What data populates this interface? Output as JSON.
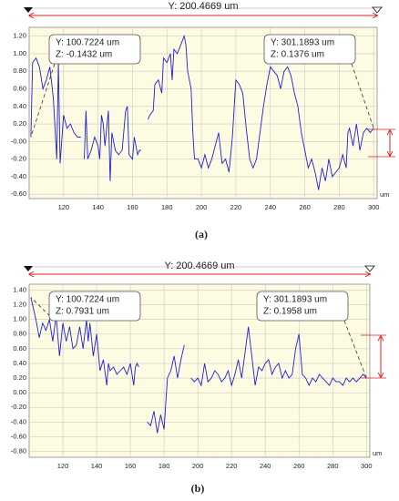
{
  "chart_data": [
    {
      "type": "line",
      "title": "Y: 200.4669 um",
      "x_label": "um",
      "caption": "(a)",
      "color": "#1f1fd8",
      "grid": true,
      "xlim": [
        100,
        302
      ],
      "ylim": [
        -0.65,
        1.3
      ],
      "xticks": [
        120,
        140,
        160,
        180,
        200,
        220,
        240,
        260,
        280,
        300
      ],
      "yticks": [
        {
          "value": 1.2,
          "label": "1.20"
        },
        {
          "value": 1.0,
          "label": "1.00"
        },
        {
          "value": 0.8,
          "label": "0.80"
        },
        {
          "value": 0.6,
          "label": "0.60"
        },
        {
          "value": 0.4,
          "label": "0.40"
        },
        {
          "value": 0.2,
          "label": "0.20"
        },
        {
          "value": 0,
          "label": "-0.00"
        },
        {
          "value": -0.2,
          "label": "-0.20"
        },
        {
          "value": -0.4,
          "label": "-0.40"
        },
        {
          "value": -0.6,
          "label": "-0.60"
        }
      ],
      "annotations": [
        [
          "Y: 100.7224 um",
          "Z: -0.1432 um"
        ],
        [
          "Y: 301.1893 um",
          "Z: 0.1376 um"
        ]
      ],
      "x": [
        101,
        102,
        104,
        106,
        108,
        110,
        112,
        114,
        116,
        117,
        118,
        120,
        122,
        124,
        126,
        128,
        130,
        131,
        132,
        133,
        134,
        136,
        138,
        140,
        141,
        142,
        143,
        144,
        145,
        146,
        147,
        148,
        150,
        152,
        154,
        156,
        157,
        158,
        160,
        161,
        162,
        163,
        164,
        165,
        166,
        169,
        170,
        172,
        173,
        175,
        177,
        178,
        180,
        182,
        183,
        184,
        186,
        188,
        190,
        191,
        192,
        194,
        195,
        196,
        198,
        200,
        202,
        204,
        206,
        208,
        210,
        212,
        214,
        216,
        218,
        220,
        222,
        224,
        226,
        228,
        230,
        232,
        234,
        236,
        238,
        240,
        242,
        244,
        246,
        248,
        250,
        252,
        254,
        256,
        258,
        260,
        262,
        264,
        266,
        268,
        270,
        272,
        274,
        276,
        278,
        280,
        282,
        284,
        285,
        286,
        288,
        290,
        292,
        294,
        296,
        298,
        300
      ],
      "values": [
        0.05,
        0.9,
        0.95,
        0.85,
        0.6,
        0.7,
        0.85,
        0.5,
        -0.2,
        0.9,
        -0.25,
        0.3,
        0.15,
        0.2,
        0.1,
        0.05,
        0.05,
        null,
        -0.2,
        0.35,
        -0.2,
        -0.1,
        0.05,
        -0.05,
        -0.2,
        0.3,
        0.2,
        -0.05,
        0.15,
        0.35,
        -0.45,
        0.1,
        -0.1,
        -0.15,
        -0.1,
        0.35,
        0.4,
        -0.15,
        -0.2,
        0.05,
        -0.05,
        -0.15,
        -0.1,
        -0.1,
        null,
        0.25,
        0.3,
        0.35,
        0.65,
        0.7,
        0.55,
        0.95,
        0.9,
        1.0,
        0.7,
        1.05,
        1.0,
        1.1,
        1.2,
        1.1,
        0.8,
        0.6,
        0.1,
        -0.2,
        -0.2,
        -0.3,
        -0.15,
        -0.3,
        -0.2,
        -0.05,
        0.1,
        -0.25,
        -0.2,
        -0.35,
        0.05,
        0.7,
        0.65,
        0.55,
        0.15,
        -0.2,
        -0.3,
        -0.2,
        0.1,
        0.4,
        0.65,
        0.85,
        0.8,
        0.75,
        0.6,
        0.8,
        0.85,
        0.75,
        0.55,
        0.4,
        0.1,
        -0.1,
        -0.3,
        -0.2,
        -0.35,
        -0.55,
        -0.3,
        -0.45,
        -0.2,
        -0.4,
        -0.35,
        -0.3,
        -0.15,
        -0.3,
        0.1,
        0.15,
        -0.05,
        0.2,
        -0.1,
        0.1,
        0.15,
        0.1,
        0.15
      ]
    },
    {
      "type": "line",
      "title": "Y: 200.4669 um",
      "x_label": "um",
      "caption": "(b)",
      "color": "#1f1fd8",
      "grid": true,
      "xlim": [
        100,
        302
      ],
      "ylim": [
        -0.88,
        1.48
      ],
      "xticks": [
        120,
        140,
        160,
        180,
        200,
        220,
        240,
        260,
        280,
        300
      ],
      "yticks": [
        {
          "value": 1.4,
          "label": "1.40"
        },
        {
          "value": 1.2,
          "label": "1.20"
        },
        {
          "value": 1.0,
          "label": "1.00"
        },
        {
          "value": 0.8,
          "label": "0.80"
        },
        {
          "value": 0.6,
          "label": "0.60"
        },
        {
          "value": 0.4,
          "label": "0.40"
        },
        {
          "value": 0.2,
          "label": "0.20"
        },
        {
          "value": 0,
          "label": "0.00"
        },
        {
          "value": -0.2,
          "label": "-0.20"
        },
        {
          "value": -0.4,
          "label": "-0.40"
        },
        {
          "value": -0.6,
          "label": "-0.60"
        },
        {
          "value": -0.8,
          "label": "-0.80"
        }
      ],
      "annotations": [
        [
          "Y: 100.7224 um",
          "Z: 0.7931 um"
        ],
        [
          "Y: 301.1893 um",
          "Z: 0.1958 um"
        ]
      ],
      "x": [
        101,
        102,
        104,
        106,
        108,
        110,
        112,
        114,
        116,
        118,
        120,
        122,
        124,
        126,
        128,
        130,
        132,
        134,
        135,
        136,
        138,
        140,
        142,
        144,
        146,
        147,
        148,
        150,
        152,
        154,
        156,
        158,
        160,
        162,
        163,
        164,
        165,
        166,
        170,
        172,
        174,
        176,
        178,
        180,
        182,
        184,
        186,
        188,
        190,
        192,
        194,
        196,
        198,
        200,
        202,
        204,
        206,
        208,
        210,
        212,
        214,
        216,
        218,
        220,
        222,
        224,
        226,
        228,
        230,
        232,
        234,
        236,
        238,
        240,
        242,
        244,
        246,
        248,
        250,
        252,
        254,
        256,
        258,
        260,
        262,
        264,
        266,
        268,
        270,
        272,
        274,
        276,
        278,
        280,
        282,
        284,
        286,
        288,
        290,
        292,
        294,
        296,
        298,
        300
      ],
      "values": [
        1.3,
        1.2,
        1.0,
        0.75,
        0.95,
        0.85,
        1.0,
        0.7,
        1.05,
        0.5,
        0.95,
        0.7,
        0.9,
        0.6,
        0.65,
        0.9,
        0.6,
        1.0,
        0.7,
        0.95,
        0.5,
        0.8,
        0.3,
        0.45,
        0.1,
        0.4,
        0.3,
        0.35,
        0.25,
        0.3,
        0.35,
        0.25,
        0.4,
        0.1,
        0.35,
        0.4,
        0.35,
        null,
        -0.4,
        -0.45,
        -0.25,
        -0.55,
        -0.3,
        -0.5,
        0.2,
        0.3,
        0.5,
        0.2,
        0.45,
        0.65,
        null,
        0.2,
        0.15,
        0.2,
        0.1,
        0.4,
        0.15,
        0.2,
        0.3,
        0.25,
        0.15,
        0.2,
        0.3,
        0.1,
        0.25,
        0.45,
        0.2,
        0.55,
        0.9,
        0.5,
        0.1,
        0.35,
        0.3,
        0.4,
        0.45,
        0.25,
        0.35,
        0.4,
        0.2,
        0.3,
        0.2,
        0.25,
        0.6,
        0.8,
        0.25,
        0.2,
        0.1,
        0.2,
        0.15,
        0.25,
        0.2,
        0.15,
        0.1,
        0.2,
        0.15,
        0.15,
        0.1,
        0.2,
        0.15,
        0.2,
        0.15,
        0.2,
        0.25,
        0.2
      ]
    }
  ]
}
